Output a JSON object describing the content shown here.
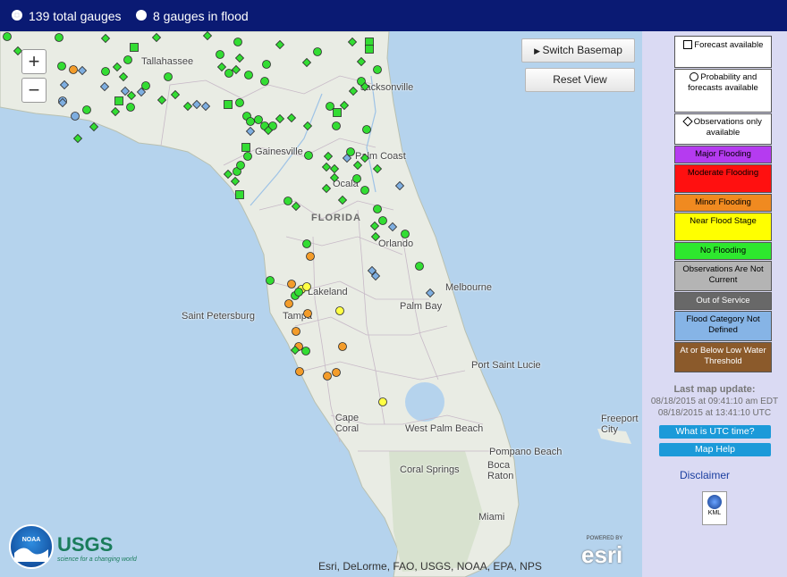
{
  "topbar": {
    "total_label": "139 total gauges",
    "flood_label": "8 gauges in flood"
  },
  "map": {
    "switch_basemap": "Switch Basemap",
    "reset_view": "Reset View",
    "zoom_in": "+",
    "zoom_out": "−",
    "attribution": "Esri, DeLorme, FAO, USGS, NOAA, EPA, NPS",
    "state_label": "FLORIDA",
    "cities": [
      "Tallahassee",
      "Jacksonville",
      "Gainesville",
      "Palm Coast",
      "Ocala",
      "Orlando",
      "Lakeland",
      "Saint Petersburg",
      "Tampa",
      "Melbourne",
      "Palm Bay",
      "Port Saint Lucie",
      "Cape Coral",
      "West Palm Beach",
      "Pompano Beach",
      "Coral Springs",
      "Boca Raton",
      "Miami",
      "Freeport City"
    ],
    "colors": {
      "no_flooding": "#33dd33",
      "minor": "#f39c2a",
      "near": "#ffff44",
      "undefined": "#7eaee0",
      "water": "#b5d3ed",
      "land": "#e9ece4"
    }
  },
  "legend": {
    "forecast": "Forecast available",
    "probability": "Probability and forecasts available",
    "observations_only": "Observations only available",
    "major": "Major Flooding",
    "moderate": "Moderate Flooding",
    "minor": "Minor Flooding",
    "near": "Near Flood Stage",
    "no_flooding": "No Flooding",
    "not_current": "Observations Are Not Current",
    "out_of_service": "Out of Service",
    "undefined": "Flood Category Not Defined",
    "low_water": "At or Below Low Water Threshold",
    "colors": {
      "major": "#b53bf0",
      "moderate": "#ff1010",
      "minor": "#f08a20",
      "near": "#ffff00",
      "no_flooding": "#2ee82e",
      "not_current": "#b4b4b4",
      "out_of_service": "#686868",
      "undefined": "#86b4e6",
      "low_water": "#8b5a2b"
    }
  },
  "update": {
    "title": "Last map update:",
    "edt": "08/18/2015 at 09:41:10 am EDT",
    "utc": "08/18/2015 at 13:41:10 UTC"
  },
  "buttons": {
    "utc_help": "What is UTC time?",
    "map_help": "Map Help",
    "disclaimer": "Disclaimer",
    "kml": "KML"
  },
  "logos": {
    "noaa": "NOAA",
    "usgs": "USGS",
    "usgs_tag": "science for a changing world",
    "esri": "esri",
    "esri_powered": "POWERED BY"
  }
}
